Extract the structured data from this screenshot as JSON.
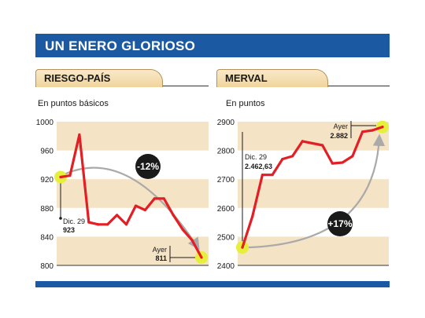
{
  "header": {
    "title": "UN ENERO GLORIOSO"
  },
  "colors": {
    "accent": "#1b5aa3",
    "line": "#e31e24",
    "band": "#f5e3c6",
    "arrow": "#aaaaaa",
    "marker": "#e6ef3a"
  },
  "chart_data": [
    {
      "type": "line",
      "title": "RIESGO-PAÍS",
      "subtitle": "En puntos básicos",
      "ylim": [
        800,
        1000
      ],
      "yticks": [
        800,
        840,
        880,
        920,
        960,
        1000
      ],
      "y_tick_labels": [
        "800",
        "840",
        "880",
        "920",
        "960",
        "1000"
      ],
      "x": [
        0,
        1,
        2,
        3,
        4,
        5,
        6,
        7,
        8,
        9,
        10,
        11,
        12,
        13,
        14,
        15
      ],
      "values": [
        923,
        925,
        982,
        860,
        857,
        857,
        870,
        857,
        883,
        877,
        893,
        893,
        870,
        850,
        835,
        811
      ],
      "annotations": {
        "start_label": "Dic. 29",
        "start_value": "923",
        "end_label": "Ayer",
        "end_value": "811",
        "change": "-12%"
      }
    },
    {
      "type": "line",
      "title": "MERVAL",
      "subtitle": "En puntos",
      "ylim": [
        2400,
        2900
      ],
      "yticks": [
        2400,
        2500,
        2600,
        2700,
        2800,
        2900
      ],
      "y_tick_labels": [
        "2400",
        "2500",
        "2600",
        "2700",
        "2800",
        "2900"
      ],
      "x": [
        0,
        1,
        2,
        3,
        4,
        5,
        6,
        7,
        8,
        9,
        10,
        11,
        12,
        13,
        14
      ],
      "values": [
        2462.63,
        2570,
        2715,
        2715,
        2770,
        2780,
        2832,
        2825,
        2818,
        2755,
        2758,
        2780,
        2865,
        2870,
        2882
      ],
      "annotations": {
        "start_label": "Dic. 29",
        "start_value": "2.462,63",
        "end_label": "Ayer",
        "end_value": "2.882",
        "change": "+17%"
      }
    }
  ]
}
